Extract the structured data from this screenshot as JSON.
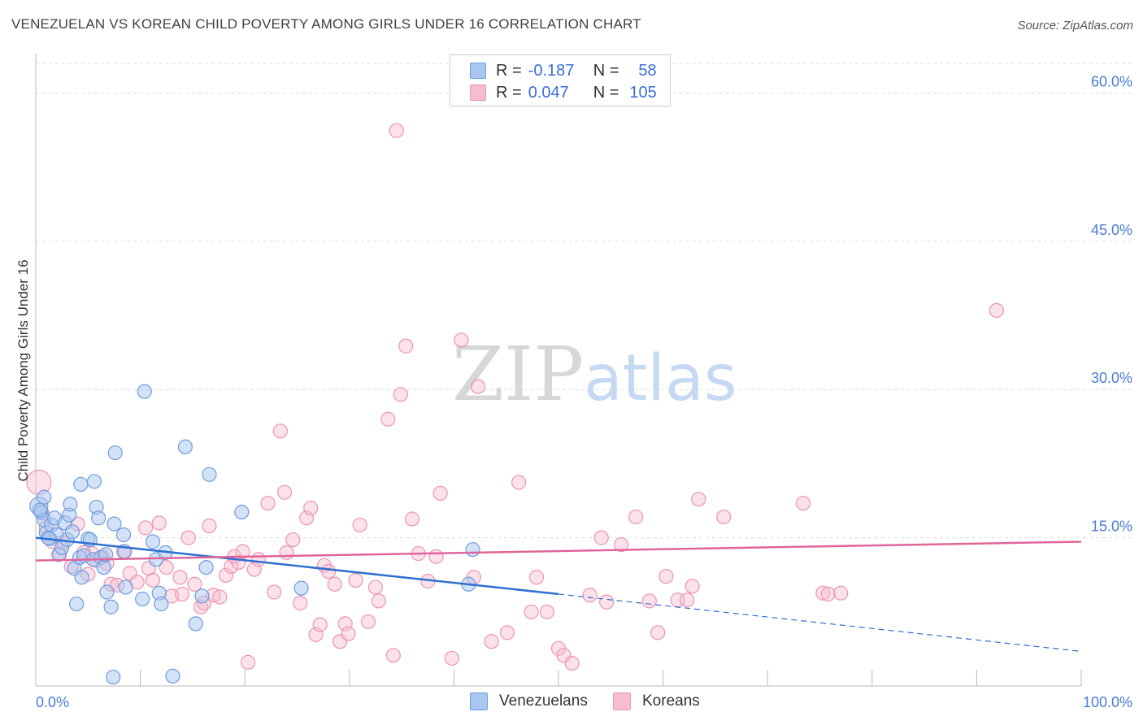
{
  "header": {
    "title": "VENEZUELAN VS KOREAN CHILD POVERTY AMONG GIRLS UNDER 16 CORRELATION CHART",
    "source": "Source: ZipAtlas.com"
  },
  "legend": {
    "rows": [
      {
        "r_label": "R =",
        "r_value": "-0.187",
        "n_label": "N =",
        "n_value": "58"
      },
      {
        "r_label": "R =",
        "r_value": "0.047",
        "n_label": "N =",
        "n_value": "105"
      }
    ],
    "bottom": [
      {
        "label": "Venezuelans"
      },
      {
        "label": "Koreans"
      }
    ]
  },
  "watermark": {
    "part1": "ZIP",
    "part2": "atlas"
  },
  "colors": {
    "venezuelans_fill": "#a9c6f0",
    "venezuelans_stroke": "#6f9de0",
    "venezuelans_line": "#2f6fd0",
    "koreans_fill": "#f6bdd0",
    "koreans_stroke": "#ec94b3",
    "koreans_line": "#e0659a",
    "axis_text": "#4a7bd6",
    "grid": "#dddddd"
  },
  "chart_data": {
    "type": "scatter",
    "title": "VENEZUELAN VS KOREAN CHILD POVERTY AMONG GIRLS UNDER 16 CORRELATION CHART",
    "xlabel": "",
    "ylabel": "Child Poverty Among Girls Under 16",
    "xlim": [
      0,
      100
    ],
    "ylim": [
      0,
      63
    ],
    "x_tick_labels": [
      "0.0%",
      "100.0%"
    ],
    "y_ticks": [
      15,
      30,
      45,
      60
    ],
    "y_tick_labels": [
      "15.0%",
      "30.0%",
      "45.0%",
      "60.0%"
    ],
    "grid": true,
    "legend_position": "top-center",
    "series": [
      {
        "name": "Venezuelans",
        "r": -0.187,
        "n": 58,
        "trend": {
          "x0": 0,
          "y0": 15.0,
          "x1_solid": 50,
          "y1_solid": 9.3,
          "x1_dashed": 100,
          "y1_dashed": 3.5
        },
        "points": [
          [
            0.3,
            18.2
          ],
          [
            0.5,
            17.6
          ],
          [
            0.8,
            16.8
          ],
          [
            0.8,
            19.1
          ],
          [
            1.0,
            15.5
          ],
          [
            1.2,
            15.0
          ],
          [
            1.5,
            16.3
          ],
          [
            1.8,
            17.0
          ],
          [
            2.0,
            15.3
          ],
          [
            2.2,
            13.3
          ],
          [
            2.5,
            14.0
          ],
          [
            2.8,
            16.5
          ],
          [
            3.0,
            14.8
          ],
          [
            3.2,
            17.3
          ],
          [
            3.3,
            18.4
          ],
          [
            3.5,
            15.6
          ],
          [
            3.7,
            11.9
          ],
          [
            3.9,
            8.3
          ],
          [
            4.2,
            13.0
          ],
          [
            4.3,
            20.4
          ],
          [
            4.4,
            11.0
          ],
          [
            4.6,
            13.2
          ],
          [
            5.0,
            14.9
          ],
          [
            5.2,
            14.8
          ],
          [
            5.5,
            12.8
          ],
          [
            5.6,
            20.7
          ],
          [
            5.8,
            18.1
          ],
          [
            6.0,
            17.0
          ],
          [
            6.2,
            13.0
          ],
          [
            6.5,
            12.0
          ],
          [
            6.7,
            13.3
          ],
          [
            6.8,
            9.5
          ],
          [
            7.2,
            8.0
          ],
          [
            7.4,
            0.9
          ],
          [
            7.6,
            23.6
          ],
          [
            7.5,
            16.4
          ],
          [
            8.4,
            15.3
          ],
          [
            8.5,
            13.6
          ],
          [
            8.6,
            10.0
          ],
          [
            10.2,
            8.8
          ],
          [
            10.4,
            29.8
          ],
          [
            11.2,
            14.6
          ],
          [
            11.5,
            12.8
          ],
          [
            11.8,
            9.4
          ],
          [
            12.0,
            8.3
          ],
          [
            12.4,
            13.5
          ],
          [
            13.1,
            1.0
          ],
          [
            14.3,
            24.2
          ],
          [
            15.3,
            6.3
          ],
          [
            15.9,
            9.1
          ],
          [
            16.3,
            12.0
          ],
          [
            16.6,
            21.4
          ],
          [
            19.7,
            17.6
          ],
          [
            25.4,
            9.9
          ],
          [
            41.4,
            10.3
          ],
          [
            41.8,
            13.8
          ],
          [
            0.4,
            17.8
          ],
          [
            1.3,
            14.9
          ]
        ]
      },
      {
        "name": "Koreans",
        "r": 0.047,
        "n": 105,
        "trend": {
          "x0": 0,
          "y0": 12.7,
          "x1": 100,
          "y1": 14.6
        },
        "points": [
          [
            0.3,
            20.6
          ],
          [
            0.6,
            17.5
          ],
          [
            1.0,
            16.0
          ],
          [
            1.6,
            14.6
          ],
          [
            2.3,
            13.4
          ],
          [
            2.6,
            14.5
          ],
          [
            3.4,
            12.1
          ],
          [
            4.0,
            16.4
          ],
          [
            4.6,
            13.5
          ],
          [
            5.0,
            11.3
          ],
          [
            5.4,
            13.4
          ],
          [
            5.8,
            12.7
          ],
          [
            6.4,
            13.1
          ],
          [
            6.8,
            12.4
          ],
          [
            7.2,
            10.3
          ],
          [
            7.8,
            10.2
          ],
          [
            8.4,
            13.6
          ],
          [
            9.0,
            11.4
          ],
          [
            9.7,
            10.5
          ],
          [
            10.5,
            16.0
          ],
          [
            10.8,
            11.9
          ],
          [
            11.2,
            10.7
          ],
          [
            11.8,
            16.5
          ],
          [
            12.5,
            12.0
          ],
          [
            13.0,
            9.1
          ],
          [
            13.8,
            11.0
          ],
          [
            14.0,
            9.3
          ],
          [
            14.6,
            15.0
          ],
          [
            15.2,
            10.3
          ],
          [
            15.8,
            8.0
          ],
          [
            16.1,
            8.4
          ],
          [
            16.6,
            16.2
          ],
          [
            17.0,
            9.2
          ],
          [
            17.6,
            9.0
          ],
          [
            18.2,
            11.2
          ],
          [
            18.7,
            12.1
          ],
          [
            19.0,
            13.1
          ],
          [
            19.4,
            12.5
          ],
          [
            19.8,
            13.6
          ],
          [
            20.3,
            2.4
          ],
          [
            20.9,
            11.8
          ],
          [
            21.3,
            12.8
          ],
          [
            22.2,
            18.5
          ],
          [
            22.8,
            9.5
          ],
          [
            23.4,
            25.8
          ],
          [
            23.8,
            19.6
          ],
          [
            24.0,
            13.5
          ],
          [
            24.6,
            14.8
          ],
          [
            25.3,
            8.4
          ],
          [
            25.9,
            17.0
          ],
          [
            26.3,
            18.0
          ],
          [
            26.8,
            5.2
          ],
          [
            27.2,
            6.2
          ],
          [
            27.6,
            12.2
          ],
          [
            28.0,
            11.6
          ],
          [
            28.6,
            10.3
          ],
          [
            29.1,
            4.5
          ],
          [
            29.6,
            6.3
          ],
          [
            29.9,
            5.3
          ],
          [
            30.6,
            10.7
          ],
          [
            31.0,
            16.3
          ],
          [
            31.8,
            6.5
          ],
          [
            32.5,
            10.0
          ],
          [
            32.8,
            8.6
          ],
          [
            33.7,
            27.0
          ],
          [
            34.2,
            3.1
          ],
          [
            34.5,
            56.2
          ],
          [
            34.9,
            29.5
          ],
          [
            35.4,
            34.4
          ],
          [
            36.0,
            16.9
          ],
          [
            36.6,
            13.4
          ],
          [
            37.5,
            10.6
          ],
          [
            38.3,
            13.1
          ],
          [
            38.7,
            19.5
          ],
          [
            39.8,
            2.8
          ],
          [
            40.7,
            35.0
          ],
          [
            41.9,
            11.0
          ],
          [
            42.3,
            30.3
          ],
          [
            43.6,
            4.5
          ],
          [
            45.1,
            5.4
          ],
          [
            46.2,
            20.6
          ],
          [
            47.4,
            7.5
          ],
          [
            47.9,
            11.0
          ],
          [
            48.9,
            7.5
          ],
          [
            50.0,
            3.8
          ],
          [
            50.5,
            3.1
          ],
          [
            51.3,
            2.3
          ],
          [
            53.0,
            9.2
          ],
          [
            54.1,
            15.0
          ],
          [
            54.6,
            8.5
          ],
          [
            56.0,
            14.3
          ],
          [
            57.4,
            17.1
          ],
          [
            58.7,
            8.6
          ],
          [
            59.5,
            5.4
          ],
          [
            60.3,
            11.1
          ],
          [
            61.4,
            8.7
          ],
          [
            62.3,
            8.7
          ],
          [
            62.8,
            10.1
          ],
          [
            63.4,
            18.9
          ],
          [
            65.8,
            17.1
          ],
          [
            73.4,
            18.5
          ],
          [
            75.3,
            9.4
          ],
          [
            75.8,
            9.3
          ],
          [
            77.0,
            9.4
          ],
          [
            91.9,
            38.0
          ]
        ]
      }
    ]
  }
}
